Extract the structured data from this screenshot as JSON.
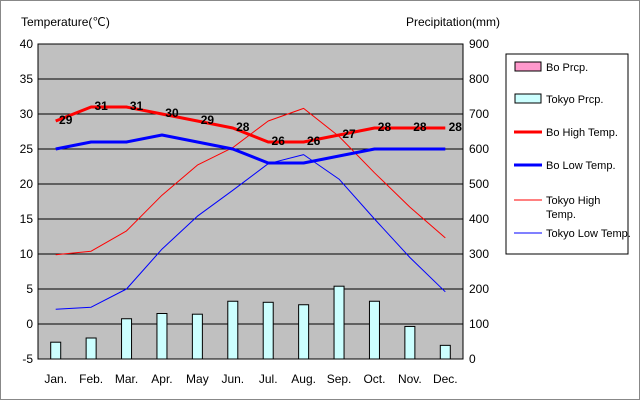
{
  "chart_data": {
    "type": "combo-bar-line",
    "categories": [
      "Jan.",
      "Feb.",
      "Mar.",
      "Apr.",
      "May",
      "Jun.",
      "Jul.",
      "Aug.",
      "Sep.",
      "Oct.",
      "Nov.",
      "Dec."
    ],
    "y_left": {
      "label": "Temperature(℃)",
      "min": -5,
      "max": 40,
      "step": 5
    },
    "y_right": {
      "label": "Precipitation(mm)",
      "min": 0,
      "max": 900,
      "step": 100
    },
    "bars": [
      {
        "name": "Bo Prcp.",
        "axis": "right",
        "color": "#ff99cc",
        "values": [
          0,
          0,
          0,
          0,
          0,
          0,
          0,
          0,
          0,
          0,
          0,
          0
        ]
      },
      {
        "name": "Tokyo Prcp.",
        "axis": "right",
        "color": "#ccffff",
        "values": [
          48,
          60,
          115,
          130,
          128,
          165,
          162,
          155,
          208,
          165,
          93,
          39
        ]
      }
    ],
    "lines": [
      {
        "name": "Bo High Temp.",
        "axis": "left",
        "color": "#ff0000",
        "width": 3,
        "values": [
          29,
          31,
          31,
          30,
          29,
          28,
          26,
          26,
          27,
          28,
          28,
          28
        ],
        "labels": true
      },
      {
        "name": "Bo Low Temp.",
        "axis": "left",
        "color": "#0000ff",
        "width": 3,
        "values": [
          25,
          26,
          26,
          27,
          26,
          25,
          23,
          23,
          24,
          25,
          25,
          25
        ],
        "labels": false
      },
      {
        "name": "Tokyo High Temp.",
        "axis": "left",
        "color": "#ff0000",
        "width": 1,
        "values": [
          9.9,
          10.4,
          13.3,
          18.4,
          22.7,
          25.2,
          29.0,
          30.8,
          26.8,
          21.6,
          16.7,
          12.3
        ],
        "labels": false
      },
      {
        "name": "Tokyo Low Temp.",
        "axis": "left",
        "color": "#0000ff",
        "width": 1,
        "values": [
          2.1,
          2.4,
          5.0,
          10.7,
          15.4,
          19.1,
          22.9,
          24.2,
          20.7,
          15.0,
          9.5,
          4.6
        ],
        "labels": false
      }
    ]
  },
  "legend": [
    {
      "name": "Bo Prcp.",
      "kind": "box",
      "color": "#ff99cc"
    },
    {
      "name": "Tokyo Prcp.",
      "kind": "box",
      "color": "#ccffff"
    },
    {
      "name": "Bo High Temp.",
      "kind": "line",
      "color": "#ff0000",
      "width": 3
    },
    {
      "name": "Bo Low Temp.",
      "kind": "line",
      "color": "#0000ff",
      "width": 3
    },
    {
      "name": "Tokyo High Temp.",
      "kind": "line",
      "color": "#ff0000",
      "width": 1
    },
    {
      "name": "Tokyo Low Temp.",
      "kind": "line",
      "color": "#0000ff",
      "width": 1
    }
  ]
}
